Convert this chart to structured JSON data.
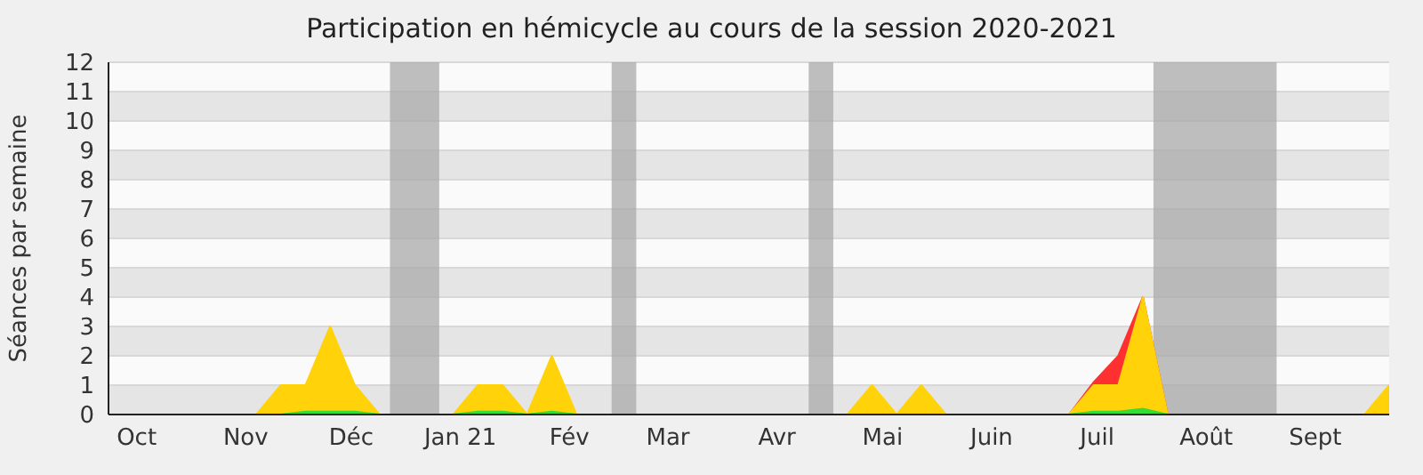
{
  "chart_data": {
    "type": "area",
    "title": "Participation en hémicycle au cours de la session 2020-2021",
    "ylabel": "Séances par semaine",
    "x": [
      "2020-09-23",
      "2020-09-30",
      "2020-10-07",
      "2020-10-14",
      "2020-10-21",
      "2020-10-28",
      "2020-11-04",
      "2020-11-11",
      "2020-11-18",
      "2020-11-25",
      "2020-12-02",
      "2020-12-09",
      "2020-12-16",
      "2020-12-23",
      "2020-12-30",
      "2021-01-06",
      "2021-01-13",
      "2021-01-20",
      "2021-01-27",
      "2021-02-03",
      "2021-02-10",
      "2021-02-17",
      "2021-02-24",
      "2021-03-03",
      "2021-03-10",
      "2021-03-17",
      "2021-03-24",
      "2021-03-31",
      "2021-04-07",
      "2021-04-14",
      "2021-04-21",
      "2021-04-28",
      "2021-05-05",
      "2021-05-12",
      "2021-05-19",
      "2021-05-26",
      "2021-06-02",
      "2021-06-09",
      "2021-06-16",
      "2021-06-23",
      "2021-06-30",
      "2021-07-07",
      "2021-07-14",
      "2021-07-21",
      "2021-07-28",
      "2021-08-04",
      "2021-08-11",
      "2021-08-18",
      "2021-08-25",
      "2021-09-01",
      "2021-09-08",
      "2021-09-15",
      "2021-09-22"
    ],
    "series": [
      {
        "color": "#ff3030",
        "values": [
          null,
          null,
          null,
          null,
          null,
          null,
          null,
          null,
          null,
          null,
          null,
          null,
          null,
          null,
          null,
          null,
          null,
          null,
          null,
          null,
          null,
          null,
          null,
          null,
          null,
          null,
          null,
          null,
          null,
          null,
          null,
          null,
          null,
          null,
          null,
          null,
          null,
          null,
          null,
          0,
          1.1,
          2,
          4,
          0,
          null,
          null,
          null,
          null,
          null,
          null,
          null,
          null,
          null
        ]
      },
      {
        "color": "#ffd20a",
        "values": [
          0,
          0,
          0,
          0,
          0,
          0,
          0,
          1,
          1,
          3,
          1,
          0,
          0,
          0,
          0,
          1,
          1,
          0,
          2,
          0,
          0,
          0,
          0,
          0,
          0,
          0,
          0,
          0,
          0,
          0,
          0,
          1,
          0,
          1,
          0,
          0,
          0,
          0,
          0,
          0,
          1,
          1,
          4,
          0,
          0,
          0,
          0,
          0,
          0,
          0,
          0,
          0,
          1
        ]
      },
      {
        "color": "#33dd33",
        "values": [
          0,
          0,
          0,
          0,
          0,
          0,
          0,
          0,
          0.1,
          0.1,
          0.1,
          0,
          0,
          0,
          0,
          0.1,
          0.1,
          0,
          0.1,
          0,
          0,
          0,
          0,
          0,
          0,
          0,
          0,
          0,
          0,
          0,
          0,
          0,
          0,
          0,
          0,
          0,
          0,
          0,
          0,
          0,
          0.1,
          0.1,
          0.2,
          0,
          0,
          0,
          0,
          0,
          0,
          0,
          0,
          0,
          0
        ]
      }
    ],
    "xlim": [
      "2020-09-23",
      "2021-09-22"
    ],
    "xticks": [
      {
        "value": "2020-10",
        "label": "Oct"
      },
      {
        "value": "2020-11",
        "label": "Nov"
      },
      {
        "value": "2020-12",
        "label": "Déc"
      },
      {
        "value": "2021-01",
        "label": "Jan 21"
      },
      {
        "value": "2021-02",
        "label": "Fév"
      },
      {
        "value": "2021-03",
        "label": "Mar"
      },
      {
        "value": "2021-04",
        "label": "Avr"
      },
      {
        "value": "2021-05",
        "label": "Mai"
      },
      {
        "value": "2021-06",
        "label": "Juin"
      },
      {
        "value": "2021-07",
        "label": "Juil"
      },
      {
        "value": "2021-08",
        "label": "Août"
      },
      {
        "value": "2021-09",
        "label": "Sept"
      }
    ],
    "ylim": [
      0,
      12
    ],
    "yticks": [
      0,
      1,
      2,
      3,
      4,
      5,
      6,
      7,
      8,
      9,
      10,
      11,
      12
    ],
    "bands": [
      {
        "axis": "x",
        "from": "2020-12-12",
        "to": "2020-12-26",
        "color": "#aaaaaa"
      },
      {
        "axis": "x",
        "from": "2021-02-13",
        "to": "2021-02-20",
        "color": "#aaaaaa"
      },
      {
        "axis": "x",
        "from": "2021-04-10",
        "to": "2021-04-17",
        "color": "#aaaaaa"
      },
      {
        "axis": "x",
        "from": "2021-07-17",
        "to": "2021-08-21",
        "color": "#aaaaaa"
      }
    ],
    "grid": "y",
    "legend": false,
    "marker": "none"
  }
}
